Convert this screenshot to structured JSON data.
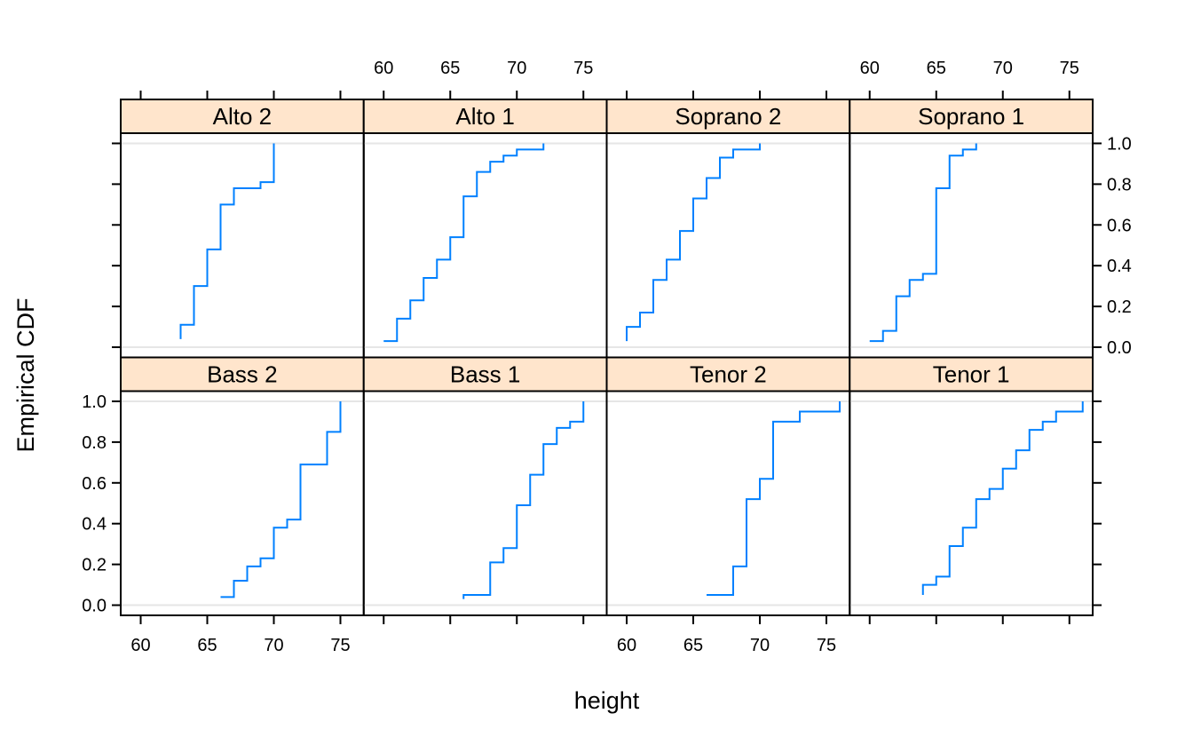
{
  "chart_data": {
    "type": "line",
    "step": true,
    "layout": {
      "columns": 4,
      "rows": 2
    },
    "xlabel": "height",
    "ylabel": "Empirical CDF",
    "xlim": [
      58.5,
      76.75
    ],
    "ylim": [
      -0.05,
      1.05
    ],
    "x_ticks": [
      60,
      65,
      70,
      75
    ],
    "y_ticks": [
      0.0,
      0.2,
      0.4,
      0.6,
      0.8,
      1.0
    ],
    "y_tick_labels": [
      "0.0",
      "0.2",
      "0.4",
      "0.6",
      "0.8",
      "1.0"
    ],
    "reference_lines": [
      0,
      1
    ],
    "colors": {
      "line": "#0080ff",
      "strip": "#ffe5cc",
      "reference": "#e6e6e6"
    },
    "panels": [
      {
        "name": "Alto 2",
        "row": 0,
        "col": 0,
        "points": [
          [
            63,
            0.04
          ],
          [
            63,
            0.11
          ],
          [
            64,
            0.11
          ],
          [
            64,
            0.3
          ],
          [
            65,
            0.3
          ],
          [
            65,
            0.48
          ],
          [
            66,
            0.48
          ],
          [
            66,
            0.7
          ],
          [
            67,
            0.7
          ],
          [
            67,
            0.78
          ],
          [
            69,
            0.78
          ],
          [
            69,
            0.81
          ],
          [
            70,
            0.81
          ],
          [
            70,
            1.0
          ]
        ]
      },
      {
        "name": "Alto 1",
        "row": 0,
        "col": 1,
        "points": [
          [
            60,
            0.03
          ],
          [
            61,
            0.03
          ],
          [
            61,
            0.14
          ],
          [
            62,
            0.14
          ],
          [
            62,
            0.23
          ],
          [
            63,
            0.23
          ],
          [
            63,
            0.34
          ],
          [
            64,
            0.34
          ],
          [
            64,
            0.43
          ],
          [
            65,
            0.43
          ],
          [
            65,
            0.54
          ],
          [
            66,
            0.54
          ],
          [
            66,
            0.74
          ],
          [
            67,
            0.74
          ],
          [
            67,
            0.86
          ],
          [
            68,
            0.86
          ],
          [
            68,
            0.91
          ],
          [
            69,
            0.91
          ],
          [
            69,
            0.94
          ],
          [
            70,
            0.94
          ],
          [
            70,
            0.97
          ],
          [
            72,
            0.97
          ],
          [
            72,
            1.0
          ]
        ]
      },
      {
        "name": "Soprano 2",
        "row": 0,
        "col": 2,
        "points": [
          [
            60,
            0.03
          ],
          [
            60,
            0.1
          ],
          [
            61,
            0.1
          ],
          [
            61,
            0.17
          ],
          [
            62,
            0.17
          ],
          [
            62,
            0.33
          ],
          [
            63,
            0.33
          ],
          [
            63,
            0.43
          ],
          [
            64,
            0.43
          ],
          [
            64,
            0.57
          ],
          [
            65,
            0.57
          ],
          [
            65,
            0.73
          ],
          [
            66,
            0.73
          ],
          [
            66,
            0.83
          ],
          [
            67,
            0.83
          ],
          [
            67,
            0.93
          ],
          [
            68,
            0.93
          ],
          [
            68,
            0.97
          ],
          [
            70,
            0.97
          ],
          [
            70,
            1.0
          ]
        ]
      },
      {
        "name": "Soprano 1",
        "row": 0,
        "col": 3,
        "points": [
          [
            60,
            0.03
          ],
          [
            61,
            0.03
          ],
          [
            61,
            0.08
          ],
          [
            62,
            0.08
          ],
          [
            62,
            0.25
          ],
          [
            63,
            0.25
          ],
          [
            63,
            0.33
          ],
          [
            64,
            0.33
          ],
          [
            64,
            0.36
          ],
          [
            65,
            0.36
          ],
          [
            65,
            0.78
          ],
          [
            66,
            0.78
          ],
          [
            66,
            0.94
          ],
          [
            67,
            0.94
          ],
          [
            67,
            0.97
          ],
          [
            68,
            0.97
          ],
          [
            68,
            1.0
          ]
        ]
      },
      {
        "name": "Bass 2",
        "row": 1,
        "col": 0,
        "points": [
          [
            66,
            0.04
          ],
          [
            67,
            0.04
          ],
          [
            67,
            0.12
          ],
          [
            68,
            0.12
          ],
          [
            68,
            0.19
          ],
          [
            69,
            0.19
          ],
          [
            69,
            0.23
          ],
          [
            70,
            0.23
          ],
          [
            70,
            0.38
          ],
          [
            71,
            0.38
          ],
          [
            71,
            0.42
          ],
          [
            72,
            0.42
          ],
          [
            72,
            0.69
          ],
          [
            74,
            0.69
          ],
          [
            74,
            0.85
          ],
          [
            75,
            0.85
          ],
          [
            75,
            1.0
          ]
        ]
      },
      {
        "name": "Bass 1",
        "row": 1,
        "col": 1,
        "points": [
          [
            66,
            0.03
          ],
          [
            66,
            0.05
          ],
          [
            68,
            0.05
          ],
          [
            68,
            0.21
          ],
          [
            69,
            0.21
          ],
          [
            69,
            0.28
          ],
          [
            70,
            0.28
          ],
          [
            70,
            0.49
          ],
          [
            71,
            0.49
          ],
          [
            71,
            0.64
          ],
          [
            72,
            0.64
          ],
          [
            72,
            0.79
          ],
          [
            73,
            0.79
          ],
          [
            73,
            0.87
          ],
          [
            74,
            0.87
          ],
          [
            74,
            0.9
          ],
          [
            75,
            0.9
          ],
          [
            75,
            1.0
          ]
        ]
      },
      {
        "name": "Tenor 2",
        "row": 1,
        "col": 2,
        "points": [
          [
            66,
            0.05
          ],
          [
            68,
            0.05
          ],
          [
            68,
            0.19
          ],
          [
            69,
            0.19
          ],
          [
            69,
            0.52
          ],
          [
            70,
            0.52
          ],
          [
            70,
            0.62
          ],
          [
            71,
            0.62
          ],
          [
            71,
            0.9
          ],
          [
            73,
            0.9
          ],
          [
            73,
            0.95
          ],
          [
            76,
            0.95
          ],
          [
            76,
            1.0
          ]
        ]
      },
      {
        "name": "Tenor 1",
        "row": 1,
        "col": 3,
        "points": [
          [
            64,
            0.05
          ],
          [
            64,
            0.1
          ],
          [
            65,
            0.1
          ],
          [
            65,
            0.14
          ],
          [
            66,
            0.14
          ],
          [
            66,
            0.29
          ],
          [
            67,
            0.29
          ],
          [
            67,
            0.38
          ],
          [
            68,
            0.38
          ],
          [
            68,
            0.52
          ],
          [
            69,
            0.52
          ],
          [
            69,
            0.57
          ],
          [
            70,
            0.57
          ],
          [
            70,
            0.67
          ],
          [
            71,
            0.67
          ],
          [
            71,
            0.76
          ],
          [
            72,
            0.76
          ],
          [
            72,
            0.86
          ],
          [
            73,
            0.86
          ],
          [
            73,
            0.9
          ],
          [
            74,
            0.9
          ],
          [
            74,
            0.95
          ],
          [
            76,
            0.95
          ],
          [
            76,
            1.0
          ]
        ]
      }
    ]
  }
}
